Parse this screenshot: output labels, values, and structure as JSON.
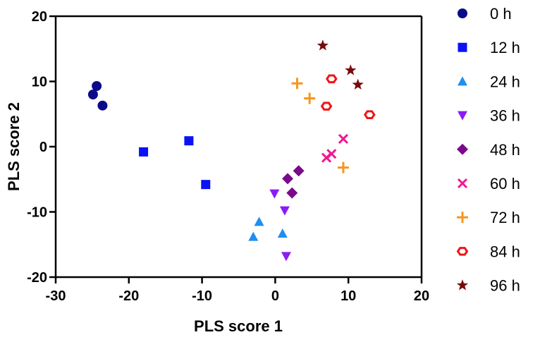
{
  "chart_data": {
    "type": "scatter",
    "title": "",
    "xlabel": "PLS score 1",
    "ylabel": "PLS score 2",
    "xlim": [
      -30,
      20
    ],
    "ylim": [
      -20,
      20
    ],
    "xticks": [
      -30,
      -20,
      -10,
      0,
      10,
      20
    ],
    "yticks": [
      -20,
      -10,
      0,
      10,
      20
    ],
    "grid": false,
    "legend_position": "right",
    "series": [
      {
        "name": "0 h",
        "marker": "circle",
        "color": "#0b0b8a",
        "points": [
          [
            -24.4,
            9.3
          ],
          [
            -24.9,
            8.0
          ],
          [
            -23.6,
            6.3
          ]
        ]
      },
      {
        "name": "12 h",
        "marker": "square",
        "color": "#0a12f5",
        "points": [
          [
            -18.0,
            -0.8
          ],
          [
            -11.8,
            0.9
          ],
          [
            -9.5,
            -5.8
          ]
        ]
      },
      {
        "name": "24 h",
        "marker": "triangle-up",
        "color": "#1e8ff0",
        "points": [
          [
            -2.2,
            -11.5
          ],
          [
            -3.0,
            -13.8
          ],
          [
            1.0,
            -13.3
          ]
        ]
      },
      {
        "name": "36 h",
        "marker": "triangle-down",
        "color": "#8a1cf5",
        "points": [
          [
            -0.1,
            -7.2
          ],
          [
            1.3,
            -9.8
          ],
          [
            1.5,
            -16.8
          ]
        ]
      },
      {
        "name": "48 h",
        "marker": "diamond",
        "color": "#7a0a8a",
        "points": [
          [
            3.2,
            -3.7
          ],
          [
            1.7,
            -4.9
          ],
          [
            2.3,
            -7.1
          ]
        ]
      },
      {
        "name": "60 h",
        "marker": "x",
        "color": "#f01890",
        "points": [
          [
            9.3,
            1.2
          ],
          [
            7.7,
            -1.1
          ],
          [
            7.0,
            -1.7
          ]
        ]
      },
      {
        "name": "72 h",
        "marker": "plus",
        "color": "#f5961e",
        "points": [
          [
            3.0,
            9.7
          ],
          [
            4.7,
            7.4
          ],
          [
            9.3,
            -3.2
          ]
        ]
      },
      {
        "name": "84 h",
        "marker": "hexagon-open",
        "color": "#f01414",
        "points": [
          [
            7.7,
            10.4
          ],
          [
            7.0,
            6.2
          ],
          [
            12.9,
            4.9
          ]
        ]
      },
      {
        "name": "96 h",
        "marker": "star",
        "color": "#7a0a0a",
        "points": [
          [
            6.5,
            15.5
          ],
          [
            10.3,
            11.7
          ],
          [
            11.3,
            9.5
          ]
        ]
      }
    ]
  }
}
